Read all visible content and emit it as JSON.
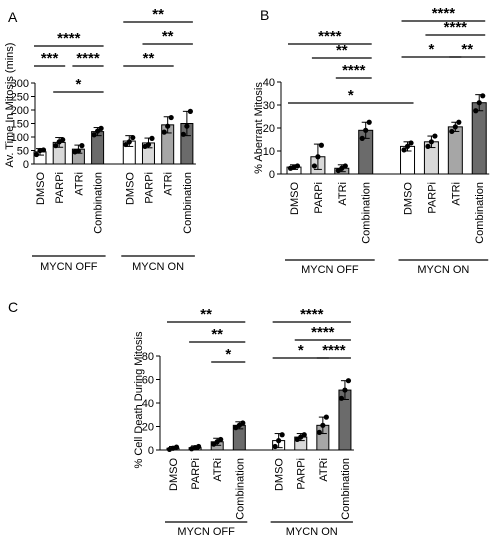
{
  "colors": {
    "white": "#ffffff",
    "light": "#d9d9d9",
    "mid": "#a6a6a6",
    "dark": "#6b6b6b",
    "outline": "#000000"
  },
  "chart_data": [
    {
      "panel": "A",
      "type": "bar",
      "ylabel": "Av. Time In Mitosis (mins)",
      "ylim": [
        0,
        300
      ],
      "yticks": [
        0,
        50,
        100,
        150,
        200,
        250,
        300
      ],
      "categories": [
        "DMSO",
        "PARPi",
        "ATRi",
        "Combination",
        "DMSO",
        "PARPi",
        "ATRi",
        "Combination"
      ],
      "groups": [
        {
          "label": "MYCN OFF",
          "categories": [
            "DMSO",
            "PARPi",
            "ATRi",
            "Combination"
          ]
        },
        {
          "label": "MYCN ON",
          "categories": [
            "DMSO",
            "PARPi",
            "ATRi",
            "Combination"
          ]
        }
      ],
      "values": [
        45,
        80,
        55,
        120,
        85,
        78,
        145,
        150
      ],
      "errors": [
        12,
        18,
        15,
        15,
        20,
        18,
        30,
        45
      ],
      "points": [
        [
          35,
          50,
          52
        ],
        [
          68,
          82,
          90
        ],
        [
          45,
          48,
          68
        ],
        [
          108,
          122,
          132
        ],
        [
          72,
          82,
          98
        ],
        [
          65,
          72,
          95
        ],
        [
          118,
          140,
          172
        ],
        [
          110,
          140,
          195
        ]
      ],
      "fills": [
        "white",
        "light",
        "mid",
        "dark",
        "white",
        "light",
        "mid",
        "dark"
      ],
      "significance": [
        {
          "from": 0,
          "to": 3,
          "label": "****"
        },
        {
          "from": 0,
          "to": 1,
          "label": "***"
        },
        {
          "from": 1,
          "to": 3,
          "label": "*"
        },
        {
          "from": 2,
          "to": 3,
          "label": "****"
        },
        {
          "from": 4,
          "to": 7,
          "label": "**"
        },
        {
          "from": 5,
          "to": 7,
          "label": "**"
        },
        {
          "from": 4,
          "to": 6,
          "label": "**"
        }
      ]
    },
    {
      "panel": "B",
      "type": "bar",
      "ylabel": "% Aberrant Mitosis",
      "ylim": [
        0,
        40
      ],
      "yticks": [
        0,
        10,
        20,
        30,
        40
      ],
      "categories": [
        "DMSO",
        "PARPi",
        "ATRi",
        "Combination",
        "DMSO",
        "PARPi",
        "ATRi",
        "Combination"
      ],
      "groups": [
        {
          "label": "MYCN OFF",
          "categories": [
            "DMSO",
            "PARPi",
            "ATRi",
            "Combination"
          ]
        },
        {
          "label": "MYCN ON",
          "categories": [
            "DMSO",
            "PARPi",
            "ATRi",
            "Combination"
          ]
        }
      ],
      "values": [
        3,
        7.5,
        2.5,
        19,
        12,
        14,
        20.5,
        31
      ],
      "errors": [
        1,
        5.5,
        1.5,
        3.5,
        2,
        2.5,
        2,
        3.5
      ],
      "points": [
        [
          2.5,
          3,
          3.5
        ],
        [
          3.5,
          7.5,
          12.5
        ],
        [
          1.5,
          2.5,
          3.5
        ],
        [
          15.5,
          19,
          22.5
        ],
        [
          10.5,
          12,
          13.5
        ],
        [
          12,
          14,
          16.5
        ],
        [
          18.5,
          20.5,
          22.5
        ],
        [
          27.5,
          31,
          34
        ]
      ],
      "fills": [
        "white",
        "light",
        "mid",
        "dark",
        "white",
        "light",
        "mid",
        "dark"
      ],
      "significance": [
        {
          "from": 0,
          "to": 3,
          "label": "****"
        },
        {
          "from": 1,
          "to": 3,
          "label": "**"
        },
        {
          "from": 2,
          "to": 3,
          "label": "****"
        },
        {
          "from": 0,
          "to": 4,
          "label": "*"
        },
        {
          "from": 4,
          "to": 7,
          "label": "****"
        },
        {
          "from": 5,
          "to": 7,
          "label": "****"
        },
        {
          "from": 4,
          "to": 6,
          "label": "*"
        },
        {
          "from": 6,
          "to": 7,
          "label": "**"
        }
      ]
    },
    {
      "panel": "C",
      "type": "bar",
      "ylabel": "% Cell Death During Mitosis",
      "ylim": [
        0,
        80
      ],
      "yticks": [
        0,
        20,
        40,
        60,
        80
      ],
      "categories": [
        "DMSO",
        "PARPi",
        "ATRi",
        "Combination",
        "DMSO",
        "PARPi",
        "ATRi",
        "Combination"
      ],
      "groups": [
        {
          "label": "MYCN OFF",
          "categories": [
            "DMSO",
            "PARPi",
            "ATRi",
            "Combination"
          ]
        },
        {
          "label": "MYCN ON",
          "categories": [
            "DMSO",
            "PARPi",
            "ATRi",
            "Combination"
          ]
        }
      ],
      "values": [
        1.5,
        2,
        7,
        21,
        8,
        11,
        21,
        51
      ],
      "errors": [
        1.5,
        1.5,
        3,
        3,
        6,
        3,
        7,
        8
      ],
      "points": [
        [
          0.5,
          1.5,
          2.5
        ],
        [
          1,
          2,
          3
        ],
        [
          5,
          7,
          9
        ],
        [
          19,
          21,
          23
        ],
        [
          3,
          8,
          13
        ],
        [
          9,
          11,
          13
        ],
        [
          15,
          21,
          28
        ],
        [
          44,
          51,
          59
        ]
      ],
      "fills": [
        "white",
        "light",
        "mid",
        "dark",
        "white",
        "light",
        "mid",
        "dark"
      ],
      "significance": [
        {
          "from": 0,
          "to": 3,
          "label": "**"
        },
        {
          "from": 1,
          "to": 3,
          "label": "**"
        },
        {
          "from": 2,
          "to": 3,
          "label": "*"
        },
        {
          "from": 4,
          "to": 7,
          "label": "****"
        },
        {
          "from": 5,
          "to": 7,
          "label": "****"
        },
        {
          "from": 4,
          "to": 6,
          "label": "*"
        },
        {
          "from": 6,
          "to": 7,
          "label": "****"
        }
      ]
    }
  ]
}
